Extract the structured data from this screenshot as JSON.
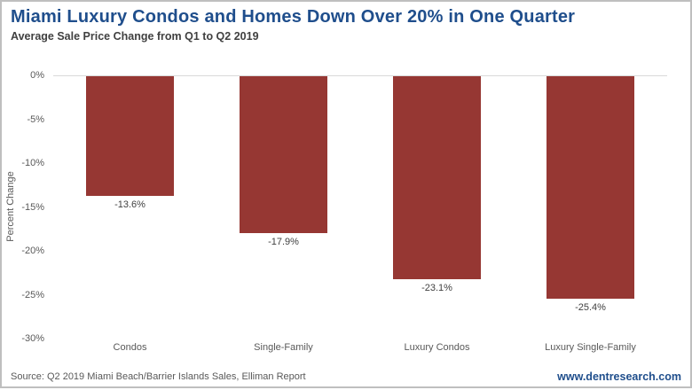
{
  "header": {
    "title": "Miami Luxury Condos and Homes Down Over 20% in One Quarter",
    "subtitle": "Average Sale Price Change from Q1 to Q2 2019"
  },
  "chart_data": {
    "type": "bar",
    "categories": [
      "Condos",
      "Single-Family",
      "Luxury Condos",
      "Luxury Single-Family"
    ],
    "values": [
      -13.6,
      -17.9,
      -23.1,
      -25.4
    ],
    "value_labels": [
      "-13.6%",
      "-17.9%",
      "-23.1%",
      "-25.4%"
    ],
    "title": "Miami Luxury Condos and Homes Down Over 20% in One Quarter",
    "subtitle": "Average Sale Price Change from Q1 to Q2 2019",
    "xlabel": "",
    "ylabel": "Percent Change",
    "ylim": [
      -30,
      0
    ],
    "ytick_values": [
      0,
      -5,
      -10,
      -15,
      -20,
      -25,
      -30
    ],
    "ytick_labels": [
      "0%",
      "-5%",
      "-10%",
      "-15%",
      "-20%",
      "-25%",
      "-30%"
    ],
    "grid": false,
    "legend": false,
    "bar_color": "#963733"
  },
  "footer": {
    "source": "Source: Q2 2019 Miami Beach/Barrier Islands Sales, Elliman Report",
    "website": "www.dentresearch.com"
  },
  "colors": {
    "title_text": "#1f4e8c",
    "subtitle_text": "#404040",
    "bar": "#963733",
    "axis_text": "#595959",
    "zero_line": "#d9d9d9",
    "frame_border": "#bfbfbf"
  }
}
